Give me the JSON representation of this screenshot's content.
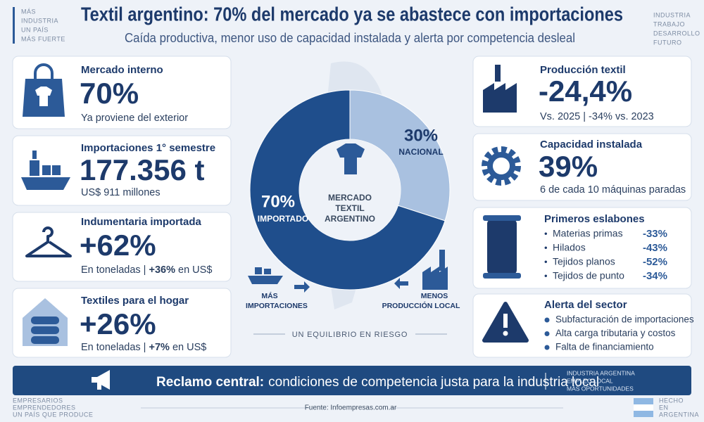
{
  "corner_left": [
    "MÁS",
    "INDUSTRIA",
    "UN PAÍS",
    "MÁS FUERTE"
  ],
  "corner_right": [
    "INDUSTRIA",
    "TRABAJO",
    "DESARROLLO",
    "FUTURO"
  ],
  "header": {
    "title": "Textil argentino: 70% del mercado ya se abastece con importaciones",
    "subtitle": "Caída productiva, menor uso de capacidad instalada y alerta por competencia desleal"
  },
  "left_cards": [
    {
      "title": "Mercado interno",
      "value": "70%",
      "detail": [
        "Ya proviene del exterior"
      ]
    },
    {
      "title": "Importaciones 1° semestre",
      "value": "177.356 t",
      "detail": [
        "US$ 911 millones"
      ]
    },
    {
      "title": "Indumentaria importada",
      "value": "+62%",
      "detail": [
        "En toneladas | ",
        "+36%",
        " en US$"
      ]
    },
    {
      "title": "Textiles para el hogar",
      "value": "+26%",
      "detail": [
        "En toneladas | ",
        "+7%",
        " en US$"
      ]
    }
  ],
  "right_cards": [
    {
      "title": "Producción textil",
      "value": "-24,4%",
      "detail": "Vs. 2025 | -34% vs. 2023"
    },
    {
      "title": "Capacidad instalada",
      "value": "39%",
      "detail": "6 de cada 10 máquinas paradas"
    }
  ],
  "links": {
    "title": "Primeros eslabones",
    "items": [
      {
        "name": "Materias primas",
        "change": "-33%"
      },
      {
        "name": "Hilados",
        "change": "-43%"
      },
      {
        "name": "Tejidos planos",
        "change": "-52%"
      },
      {
        "name": "Tejidos de punto",
        "change": "-34%"
      }
    ]
  },
  "alert": {
    "title": "Alerta del sector",
    "items": [
      "Subfacturación de importaciones",
      "Alta carga tributaria y costos",
      "Falta de financiamiento"
    ]
  },
  "donut": {
    "type": "pie",
    "categories": [
      "IMPORTADO",
      "NACIONAL"
    ],
    "values": [
      70,
      30
    ],
    "value_labels": [
      "70%",
      "30%"
    ],
    "colors": [
      "#1f4e8c",
      "#a9c1e0"
    ],
    "center": [
      "MERCADO",
      "TEXTIL",
      "ARGENTINO"
    ]
  },
  "flow": {
    "left": [
      "MÁS",
      "IMPORTACIONES"
    ],
    "right": [
      "MENOS",
      "PRODUCCIÓN LOCAL"
    ],
    "caption": "UN EQUILIBRIO EN RIESGO"
  },
  "banner": {
    "lead": "Reclamo central:",
    "text": "condiciones de competencia justa para la industria local",
    "side": [
      "INDUSTRIA ARGENTINA",
      "EMPLEO LOCAL",
      "MÁS OPORTUNIDADES"
    ]
  },
  "footer": {
    "left": [
      "EMPRESARIOS",
      "EMPRENDEDORES",
      "UN PAÍS QUE PRODUCE"
    ],
    "source": "Fuente: Infoempresas.com.ar",
    "right": [
      "HECHO",
      "EN",
      "ARGENTINA"
    ]
  }
}
